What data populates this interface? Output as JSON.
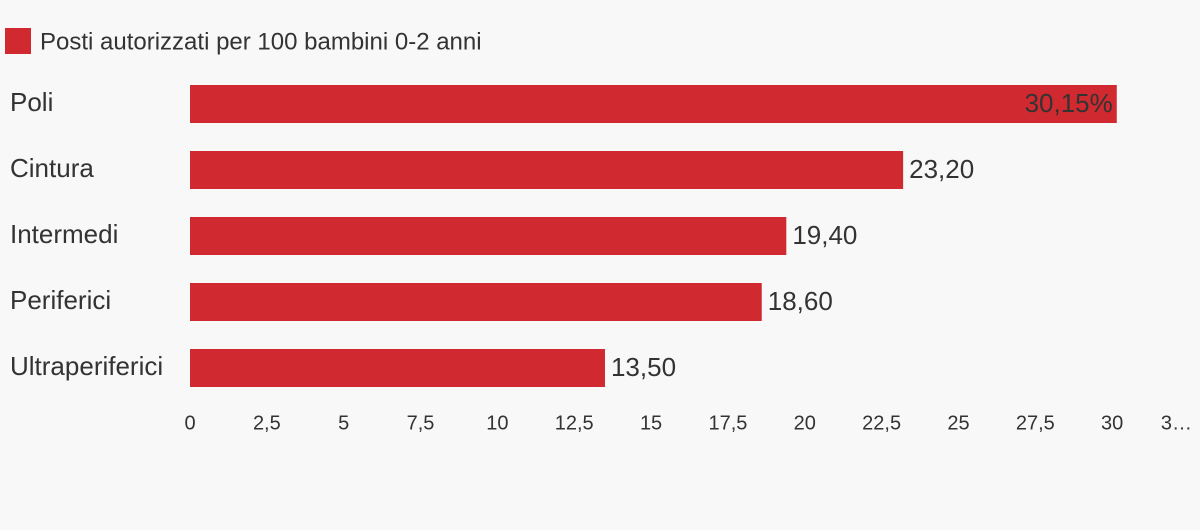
{
  "chart_data": {
    "type": "bar",
    "orientation": "horizontal",
    "categories": [
      "Poli",
      "Cintura",
      "Intermedi",
      "Periferici",
      "Ultraperiferici"
    ],
    "series": [
      {
        "name": "Posti autorizzati per 100 bambini 0-2 anni",
        "color": "#d0292f",
        "values": [
          30.15,
          23.2,
          19.4,
          18.6,
          13.5
        ],
        "value_labels": [
          "30,15%",
          "23,20",
          "19,40",
          "18,60",
          "13,50"
        ]
      }
    ],
    "xlim": [
      0,
      32.5
    ],
    "xticks": [
      0,
      {
        "value": 2.5,
        "label": "2,5"
      },
      5,
      {
        "value": 7.5,
        "label": "7,5"
      },
      10,
      {
        "value": 12.5,
        "label": "12,5"
      },
      15,
      {
        "value": 17.5,
        "label": "17,5"
      },
      20,
      {
        "value": 22.5,
        "label": "22,5"
      },
      25,
      {
        "value": 27.5,
        "label": "27,5"
      },
      30,
      {
        "value": 32.5,
        "label": "3…"
      }
    ],
    "legend": "top-left"
  }
}
